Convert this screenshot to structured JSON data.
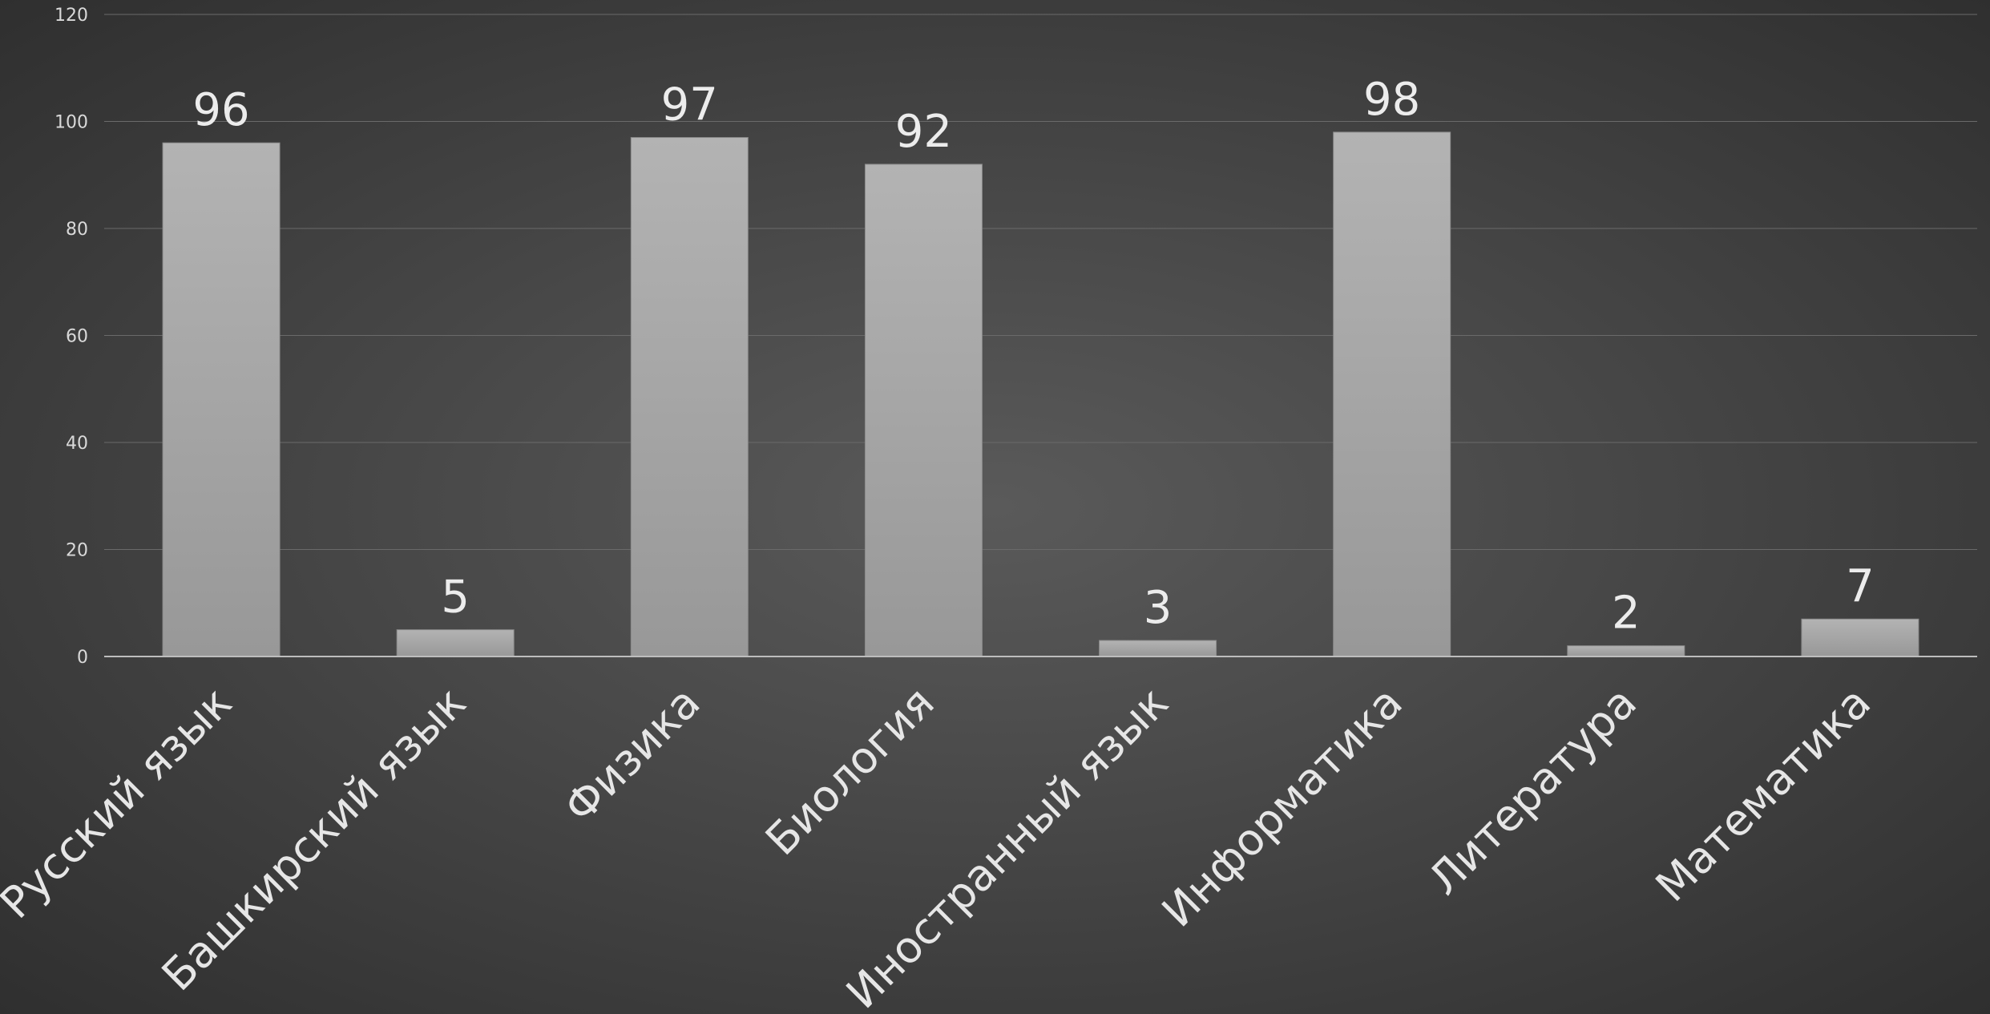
{
  "chart_data": {
    "type": "bar",
    "categories": [
      "Русский язык",
      "Башкирский язык",
      "Физика",
      "Биология",
      "Иностранный язык",
      "Информатика",
      "Литература",
      "Математика"
    ],
    "values": [
      96,
      5,
      97,
      92,
      3,
      98,
      2,
      7
    ],
    "ylim": [
      0,
      120
    ],
    "yticks": [
      0,
      20,
      40,
      60,
      80,
      100,
      120
    ],
    "grid": true,
    "bar_color": "#a8a8a8"
  }
}
